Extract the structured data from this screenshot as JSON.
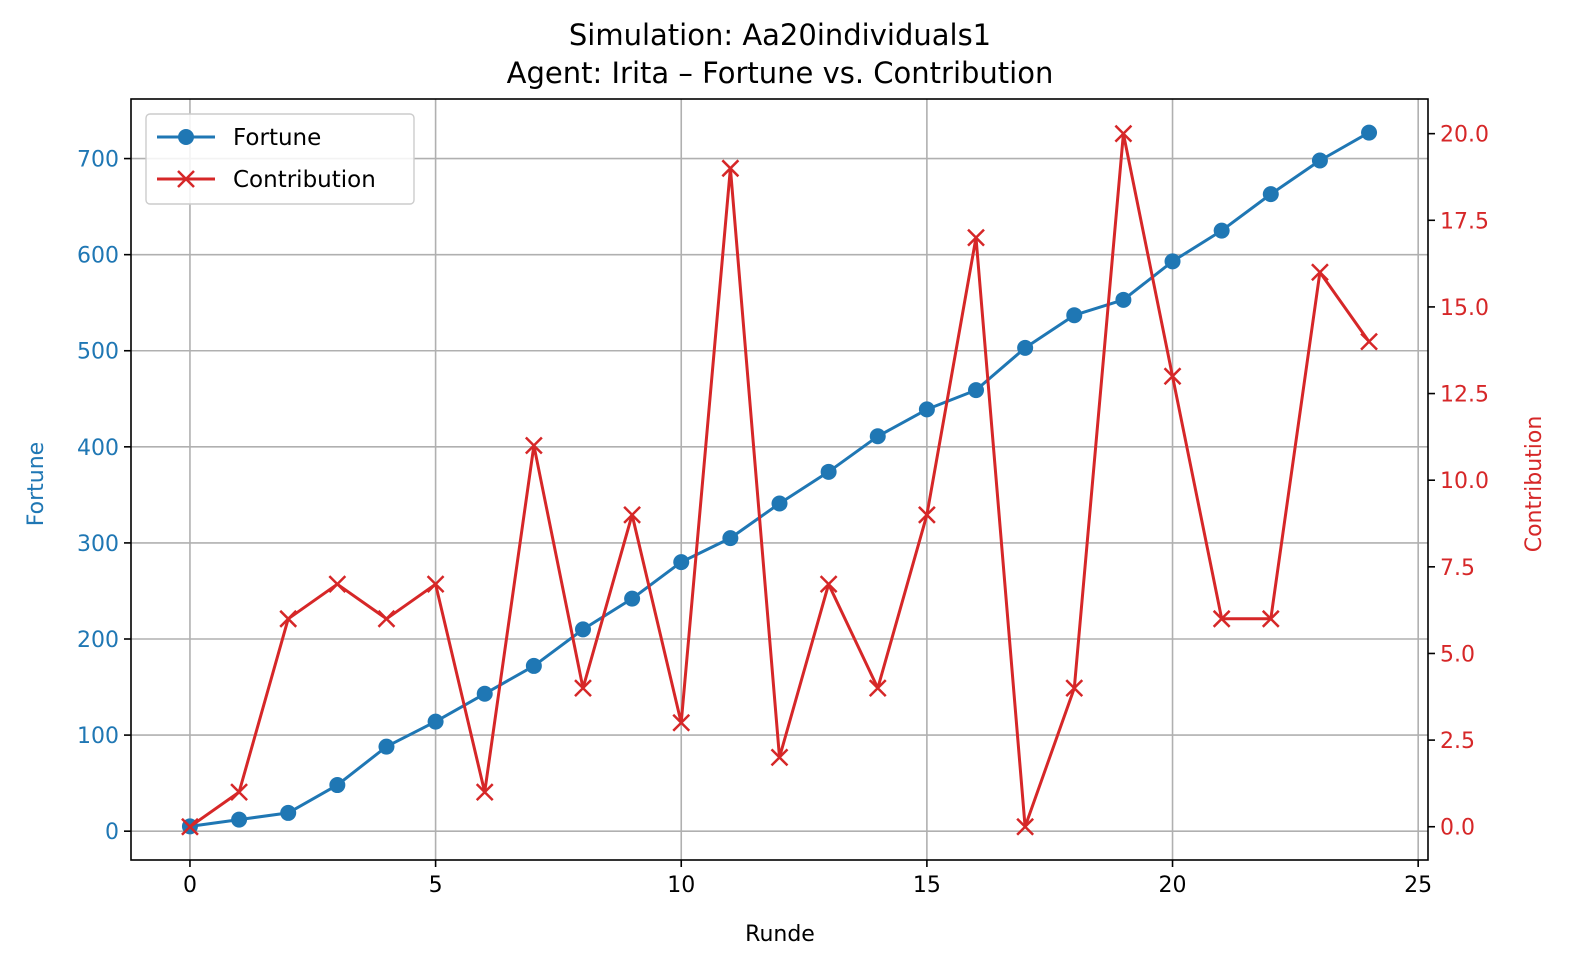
{
  "chart_data": {
    "type": "line",
    "title": "Simulation: Aa20individuals1",
    "subtitle": "Agent: Irita – Fortune vs. Contribution",
    "xlabel": "Runde",
    "ylabel": "Fortune",
    "ylabel_right": "Contribution",
    "x": [
      0,
      1,
      2,
      3,
      4,
      5,
      6,
      7,
      8,
      9,
      10,
      11,
      12,
      13,
      14,
      15,
      16,
      17,
      18,
      19,
      20,
      21,
      22,
      23,
      24
    ],
    "xlim": [
      -1.2,
      25.2
    ],
    "ylim": [
      -30,
      762
    ],
    "ylim_right": [
      -0.96,
      21.0
    ],
    "xticks": [
      0,
      5,
      10,
      15,
      20,
      25
    ],
    "yticks": [
      0,
      100,
      200,
      300,
      400,
      500,
      600,
      700
    ],
    "yticks_right": [
      0.0,
      2.5,
      5.0,
      7.5,
      10.0,
      12.5,
      15.0,
      17.5,
      20.0
    ],
    "xtick_labels": [
      "0",
      "5",
      "10",
      "15",
      "20",
      "25"
    ],
    "ytick_labels": [
      "0",
      "100",
      "200",
      "300",
      "400",
      "500",
      "600",
      "700"
    ],
    "ytick_labels_right": [
      "0.0",
      "2.5",
      "5.0",
      "7.5",
      "10.0",
      "12.5",
      "15.0",
      "17.5",
      "20.0"
    ],
    "grid": true,
    "legend_position": "upper-left",
    "series": [
      {
        "name": "Fortune",
        "axis": "left",
        "color": "#1f77b4",
        "marker": "circle",
        "values": [
          5,
          12,
          19,
          48,
          88,
          114,
          143,
          172,
          210,
          242,
          280,
          305,
          341,
          374,
          411,
          439,
          459,
          503,
          537,
          553,
          593,
          625,
          663,
          698,
          727
        ]
      },
      {
        "name": "Contribution",
        "axis": "right",
        "color": "#d62728",
        "marker": "x",
        "values": [
          0,
          1,
          6,
          7,
          6,
          7,
          1,
          11,
          4,
          9,
          3,
          19,
          2,
          7,
          4,
          9,
          17,
          0,
          4,
          20,
          13,
          6,
          6,
          16,
          14
        ]
      }
    ]
  }
}
